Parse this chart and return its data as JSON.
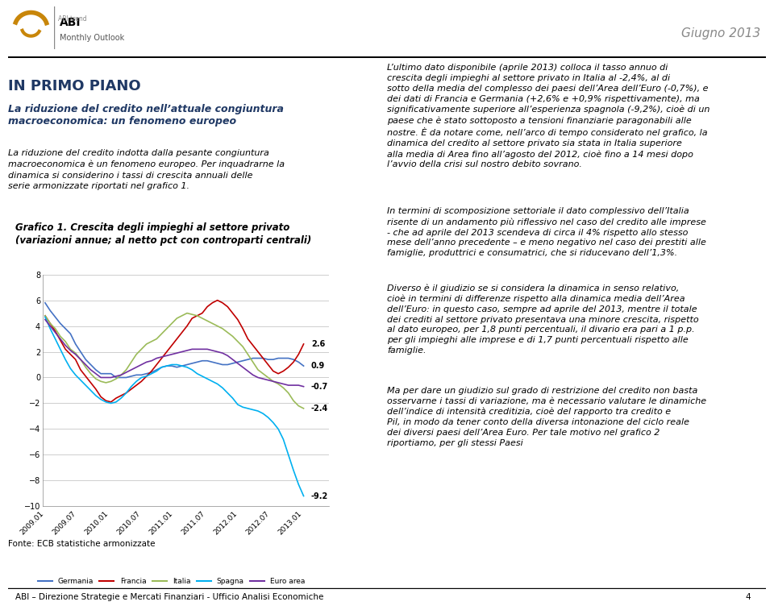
{
  "title_line1": "Grafico 1. Crescita degli impieghi al settore privato",
  "title_line2": "(variazioni annue; al netto pct con controparti centrali)",
  "footnote": "Fonte: ECB statistiche armonizzate",
  "ylim": [
    -10,
    8
  ],
  "yticks": [
    -10,
    -8,
    -6,
    -4,
    -2,
    0,
    2,
    4,
    6,
    8
  ],
  "legend_labels": [
    "Germania",
    "Francia",
    "Italia",
    "Spagna",
    "Euro area"
  ],
  "colors": {
    "Germania": "#4472C4",
    "Francia": "#C00000",
    "Italia": "#9BBB59",
    "Spagna": "#00B0F0",
    "Euro area": "#7030A0"
  },
  "xtick_labels": [
    "2009.01",
    "2009.07",
    "2010.01",
    "2010.07",
    "2011.01",
    "2011.07",
    "2012.01",
    "2012.07",
    "2013.01"
  ],
  "time_points": 52,
  "end_labels_order": [
    "Francia",
    "Germania",
    "Euro area",
    "Italia",
    "Spagna"
  ],
  "end_values": {
    "Francia": 2.6,
    "Germania": 0.9,
    "Euro area": -0.7,
    "Italia": -2.4,
    "Spagna": -9.2
  },
  "Germania": [
    5.8,
    5.2,
    4.7,
    4.2,
    3.8,
    3.4,
    2.6,
    2.0,
    1.4,
    1.0,
    0.6,
    0.3,
    0.3,
    0.3,
    0.0,
    0.0,
    0.0,
    0.1,
    0.2,
    0.2,
    0.3,
    0.4,
    0.6,
    0.8,
    0.9,
    0.9,
    0.8,
    0.9,
    1.0,
    1.1,
    1.2,
    1.3,
    1.3,
    1.2,
    1.1,
    1.0,
    1.0,
    1.1,
    1.2,
    1.3,
    1.4,
    1.5,
    1.5,
    1.5,
    1.4,
    1.4,
    1.5,
    1.5,
    1.5,
    1.4,
    1.2,
    0.9
  ],
  "Francia": [
    4.8,
    4.2,
    3.6,
    2.9,
    2.2,
    1.8,
    1.4,
    0.6,
    0.1,
    -0.4,
    -0.9,
    -1.5,
    -1.8,
    -1.9,
    -1.6,
    -1.4,
    -1.2,
    -0.9,
    -0.6,
    -0.3,
    0.1,
    0.5,
    1.0,
    1.5,
    2.0,
    2.5,
    3.0,
    3.5,
    4.0,
    4.6,
    4.8,
    5.0,
    5.5,
    5.8,
    6.0,
    5.8,
    5.5,
    5.0,
    4.5,
    3.8,
    3.0,
    2.5,
    2.0,
    1.5,
    1.0,
    0.5,
    0.3,
    0.5,
    0.8,
    1.2,
    1.8,
    2.6
  ],
  "Italia": [
    4.8,
    4.2,
    3.8,
    3.2,
    2.8,
    2.2,
    1.9,
    1.4,
    0.8,
    0.3,
    -0.1,
    -0.3,
    -0.4,
    -0.3,
    -0.1,
    0.2,
    0.6,
    1.2,
    1.8,
    2.2,
    2.6,
    2.8,
    3.0,
    3.4,
    3.8,
    4.2,
    4.6,
    4.8,
    5.0,
    4.9,
    4.8,
    4.6,
    4.4,
    4.2,
    4.0,
    3.8,
    3.5,
    3.2,
    2.8,
    2.4,
    1.8,
    1.2,
    0.6,
    0.3,
    0.0,
    -0.3,
    -0.5,
    -0.8,
    -1.2,
    -1.8,
    -2.2,
    -2.4
  ],
  "Spagna": [
    4.7,
    3.8,
    3.0,
    2.2,
    1.4,
    0.7,
    0.2,
    -0.2,
    -0.6,
    -1.0,
    -1.4,
    -1.7,
    -1.9,
    -2.0,
    -1.9,
    -1.6,
    -1.2,
    -0.7,
    -0.3,
    0.0,
    0.1,
    0.3,
    0.5,
    0.8,
    0.9,
    1.0,
    1.0,
    0.9,
    0.8,
    0.6,
    0.3,
    0.1,
    -0.1,
    -0.3,
    -0.5,
    -0.8,
    -1.2,
    -1.6,
    -2.1,
    -2.3,
    -2.4,
    -2.5,
    -2.6,
    -2.8,
    -3.1,
    -3.5,
    -4.0,
    -4.8,
    -6.0,
    -7.2,
    -8.3,
    -9.2
  ],
  "Euro area": [
    4.5,
    4.0,
    3.5,
    3.0,
    2.5,
    2.1,
    1.8,
    1.4,
    1.0,
    0.6,
    0.3,
    0.0,
    0.0,
    0.0,
    0.1,
    0.2,
    0.4,
    0.6,
    0.8,
    1.0,
    1.2,
    1.3,
    1.5,
    1.6,
    1.7,
    1.8,
    1.9,
    2.0,
    2.1,
    2.2,
    2.2,
    2.2,
    2.2,
    2.1,
    2.0,
    1.9,
    1.7,
    1.4,
    1.1,
    0.8,
    0.5,
    0.2,
    0.0,
    -0.1,
    -0.2,
    -0.3,
    -0.4,
    -0.5,
    -0.6,
    -0.6,
    -0.6,
    -0.7
  ],
  "header_title": "Giugno 2013",
  "section_title": "IN PRIMO PIANO",
  "subtitle": "La riduzione del credito nell’attuale congiuntura\nmacroeconomica: un fenomeno europeo",
  "body_text_left": "La riduzione del credito indotta dalla pesante congiuntura macroeconomica è un fenomeno europeo. Per inquadrarne la dinamica si considerino i tassi di crescita annuali delle serie armonizzate riportati nel grafico 1.",
  "body_text_right1": "L’ultimo dato disponibile (aprile 2013) colloca il tasso annuo di crescita degli impieghi al settore privato in Italia al -2,4%, al di sotto della media del complesso dei paesi dell’Area dell’Euro (-0,7%), e dei dati di Francia e Germania (+2,6% e +0,9% rispettivamente), ma significativamente superiore all’esperienza spagnola (-9,2%), cioè di un paese che è stato sottoposto a tensioni finanziarie paragonabili alle nostre. È da notare come, nell’arco di tempo considerato nel grafico, la dinamica del credito al settore privato sia stata in Italia superiore alla media di Area fino all’agosto del 2012, cioè fino a 14 mesi dopo l’avvio della crisi sul nostro debito sovrano.",
  "body_text_right2": "In termini di scomposizione settoriale il dato complessivo dell’Italia risente di un andamento più riflessivo nel caso del credito alle imprese - che ad aprile del 2013 scendeva di circa il 4% rispetto allo stesso mese dell’anno precedente – e meno negativo nel caso dei prestiti alle famiglie, produttrici e consumatrici, che si riducevano dell’1,3%.",
  "body_text_right3": "Diverso è il giudizio se si considera la dinamica in senso relativo, cioè in termini di differenze rispetto alla dinamica media dell’Area dell’Euro: in questo caso, sempre ad aprile del 2013, mentre il totale dei crediti al settore privato presentava una minore crescita, rispetto al dato europeo, per 1,8 punti percentuali, il divario era pari a 1 p.p. per gli impieghi alle imprese e di 1,7 punti percentuali rispetto alle famiglie.",
  "body_text_right4": "Ma per dare un giudizio sul grado di restrizione del credito non basta osservarne i tassi di variazione, ma è necessario valutare le dinamiche dell’indice di intensità creditizia, cioè del rapporto tra credito e Pil, in modo da tener conto della diversa intonazione del ciclo reale dei diversi paesi dell’Area Euro. Per tale motivo nel grafico 2 riportiamo, per gli stessi Paesi",
  "footer_text": "ABI – Direzione Strategie e Mercati Finanziari - Ufficio Analisi Economiche",
  "footer_page": "4"
}
